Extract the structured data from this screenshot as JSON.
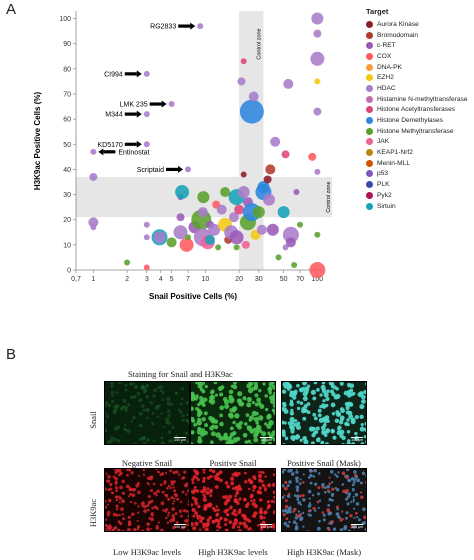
{
  "panel_a_letter": "A",
  "panel_b_letter": "B",
  "chart_data": {
    "type": "scatter",
    "title": "",
    "xlabel": "Snail Positive Cells (%)",
    "ylabel": "H3K9ac Positive Cells (%)",
    "x_scale": "log",
    "xlim": [
      0.7,
      110
    ],
    "ylim": [
      0,
      103
    ],
    "x_ticks": [
      0.7,
      1,
      2,
      3,
      4,
      5,
      7,
      10,
      20,
      30,
      50,
      70,
      100
    ],
    "x_tick_labels": [
      "0,7",
      "1",
      "2",
      "3",
      "4",
      "5",
      "7",
      "10",
      "20",
      "30",
      "50",
      "70",
      "100"
    ],
    "y_ticks": [
      0,
      10,
      20,
      30,
      40,
      50,
      60,
      70,
      80,
      90,
      100
    ],
    "grid": false,
    "legend_position": "right",
    "control_zone_label": "Control zone",
    "control_zone_x": [
      20,
      33
    ],
    "control_zone_y": [
      21,
      37
    ],
    "legend_title": "Target",
    "series": [
      {
        "name": "Aurora Kinase",
        "color": "#8c1e2b"
      },
      {
        "name": "Bromodomain",
        "color": "#b03a2e"
      },
      {
        "name": "c-RET",
        "color": "#9b59b6"
      },
      {
        "name": "COX",
        "color": "#ff5a5f"
      },
      {
        "name": "DNA-PK",
        "color": "#ff9a3c"
      },
      {
        "name": "EZH2",
        "color": "#f2c811"
      },
      {
        "name": "HDAC",
        "color": "#a87cc9"
      },
      {
        "name": "Histamine N-methyltransferase",
        "color": "#c06cb0"
      },
      {
        "name": "Histone Acetyltransferases",
        "color": "#e0457b"
      },
      {
        "name": "Histone Demethylases",
        "color": "#2e86de"
      },
      {
        "name": "Histone Methyltransferase",
        "color": "#5aa02c"
      },
      {
        "name": "JAK",
        "color": "#f06292"
      },
      {
        "name": "KEAP1-Nrf2",
        "color": "#b8860b"
      },
      {
        "name": "Menin-MLL",
        "color": "#d35400"
      },
      {
        "name": "p53",
        "color": "#7e57c2"
      },
      {
        "name": "PLK",
        "color": "#3949ab"
      },
      {
        "name": "Pyk2",
        "color": "#ad1457"
      },
      {
        "name": "Sirtuin",
        "color": "#17a2b8"
      }
    ],
    "labeled_points": [
      {
        "label": "RG2833",
        "x": 9,
        "y": 97
      },
      {
        "label": "CI994",
        "x": 3,
        "y": 78
      },
      {
        "label": "LMK 235",
        "x": 5,
        "y": 66
      },
      {
        "label": "M344",
        "x": 3,
        "y": 62
      },
      {
        "label": "KD5170",
        "x": 3,
        "y": 50
      },
      {
        "label": "Entinostat",
        "x": 1,
        "y": 47
      },
      {
        "label": "Scriptaid",
        "x": 7,
        "y": 40
      }
    ],
    "points": [
      {
        "x": 9,
        "y": 97,
        "s": 3,
        "c": 6
      },
      {
        "x": 3,
        "y": 78,
        "s": 3,
        "c": 6
      },
      {
        "x": 5,
        "y": 66,
        "s": 3,
        "c": 6
      },
      {
        "x": 3,
        "y": 62,
        "s": 3,
        "c": 6
      },
      {
        "x": 3,
        "y": 50,
        "s": 3,
        "c": 6
      },
      {
        "x": 1,
        "y": 47,
        "s": 3,
        "c": 6
      },
      {
        "x": 7,
        "y": 40,
        "s": 3,
        "c": 6
      },
      {
        "x": 1,
        "y": 37,
        "s": 4,
        "c": 6
      },
      {
        "x": 1,
        "y": 19,
        "s": 5,
        "c": 6
      },
      {
        "x": 1,
        "y": 17,
        "s": 3,
        "c": 6
      },
      {
        "x": 2,
        "y": 3,
        "s": 3,
        "c": 10
      },
      {
        "x": 3,
        "y": 18,
        "s": 3,
        "c": 6
      },
      {
        "x": 3,
        "y": 13,
        "s": 3,
        "c": 6
      },
      {
        "x": 3,
        "y": 1,
        "s": 3,
        "c": 3
      },
      {
        "x": 3.9,
        "y": 13,
        "s": 8,
        "c": 17
      },
      {
        "x": 3.9,
        "y": 13,
        "s": 6,
        "c": 6
      },
      {
        "x": 5,
        "y": 11,
        "s": 5,
        "c": 10
      },
      {
        "x": 6,
        "y": 15,
        "s": 7,
        "c": 6
      },
      {
        "x": 6,
        "y": 21,
        "s": 4,
        "c": 2
      },
      {
        "x": 6,
        "y": 29,
        "s": 3,
        "c": 2
      },
      {
        "x": 6.2,
        "y": 31,
        "s": 7,
        "c": 17
      },
      {
        "x": 6.8,
        "y": 10,
        "s": 7,
        "c": 3
      },
      {
        "x": 7,
        "y": 13,
        "s": 3,
        "c": 10
      },
      {
        "x": 8,
        "y": 17,
        "s": 6,
        "c": 2
      },
      {
        "x": 9.2,
        "y": 20,
        "s": 10,
        "c": 10
      },
      {
        "x": 9.5,
        "y": 13,
        "s": 9,
        "c": 6
      },
      {
        "x": 9.5,
        "y": 23,
        "s": 5,
        "c": 6
      },
      {
        "x": 9.6,
        "y": 29,
        "s": 6,
        "c": 10
      },
      {
        "x": 10.5,
        "y": 11,
        "s": 7,
        "c": 11
      },
      {
        "x": 11,
        "y": 12,
        "s": 5,
        "c": 17
      },
      {
        "x": 11,
        "y": 18,
        "s": 4,
        "c": 2
      },
      {
        "x": 12,
        "y": 16,
        "s": 6,
        "c": 6
      },
      {
        "x": 12.5,
        "y": 26,
        "s": 4,
        "c": 3
      },
      {
        "x": 13,
        "y": 9,
        "s": 3,
        "c": 10
      },
      {
        "x": 14,
        "y": 24,
        "s": 5,
        "c": 6
      },
      {
        "x": 15,
        "y": 18,
        "s": 7,
        "c": 5
      },
      {
        "x": 15,
        "y": 31,
        "s": 5,
        "c": 10
      },
      {
        "x": 16,
        "y": 12,
        "s": 4,
        "c": 1
      },
      {
        "x": 17,
        "y": 15,
        "s": 7,
        "c": 6
      },
      {
        "x": 18,
        "y": 21,
        "s": 5,
        "c": 6
      },
      {
        "x": 19,
        "y": 13,
        "s": 7,
        "c": 2
      },
      {
        "x": 19,
        "y": 9,
        "s": 3,
        "c": 10
      },
      {
        "x": 19,
        "y": 29,
        "s": 8,
        "c": 17
      },
      {
        "x": 20,
        "y": 24,
        "s": 5,
        "c": 8
      },
      {
        "x": 21,
        "y": 75,
        "s": 4,
        "c": 6
      },
      {
        "x": 22,
        "y": 83,
        "s": 3,
        "c": 8
      },
      {
        "x": 22,
        "y": 38,
        "s": 3,
        "c": 0
      },
      {
        "x": 22,
        "y": 31,
        "s": 6,
        "c": 6
      },
      {
        "x": 23,
        "y": 10,
        "s": 4,
        "c": 11
      },
      {
        "x": 24,
        "y": 19,
        "s": 8,
        "c": 10
      },
      {
        "x": 24,
        "y": 27,
        "s": 5,
        "c": 2
      },
      {
        "x": 26,
        "y": 23,
        "s": 9,
        "c": 9
      },
      {
        "x": 26,
        "y": 63,
        "s": 12,
        "c": 9
      },
      {
        "x": 27,
        "y": 69,
        "s": 5,
        "c": 6
      },
      {
        "x": 28,
        "y": 14,
        "s": 5,
        "c": 5
      },
      {
        "x": 30,
        "y": 23,
        "s": 6,
        "c": 10
      },
      {
        "x": 32,
        "y": 16,
        "s": 5,
        "c": 6
      },
      {
        "x": 33,
        "y": 31,
        "s": 8,
        "c": 9
      },
      {
        "x": 33,
        "y": 33,
        "s": 6,
        "c": 9
      },
      {
        "x": 36,
        "y": 36,
        "s": 4,
        "c": 0
      },
      {
        "x": 37,
        "y": 28,
        "s": 6,
        "c": 6
      },
      {
        "x": 38,
        "y": 40,
        "s": 5,
        "c": 1
      },
      {
        "x": 40,
        "y": 16,
        "s": 6,
        "c": 2
      },
      {
        "x": 42,
        "y": 51,
        "s": 5,
        "c": 6
      },
      {
        "x": 45,
        "y": 5,
        "s": 3,
        "c": 10
      },
      {
        "x": 50,
        "y": 23,
        "s": 6,
        "c": 17
      },
      {
        "x": 52,
        "y": 9,
        "s": 3,
        "c": 6
      },
      {
        "x": 52,
        "y": 46,
        "s": 4,
        "c": 8
      },
      {
        "x": 55,
        "y": 74,
        "s": 5,
        "c": 6
      },
      {
        "x": 58,
        "y": 14,
        "s": 8,
        "c": 6
      },
      {
        "x": 58,
        "y": 11,
        "s": 5,
        "c": 2
      },
      {
        "x": 62,
        "y": 2,
        "s": 3,
        "c": 10
      },
      {
        "x": 65,
        "y": 31,
        "s": 3,
        "c": 2
      },
      {
        "x": 70,
        "y": 18,
        "s": 3,
        "c": 10
      },
      {
        "x": 90,
        "y": 45,
        "s": 4,
        "c": 3
      },
      {
        "x": 100,
        "y": 100,
        "s": 6,
        "c": 6
      },
      {
        "x": 100,
        "y": 94,
        "s": 4,
        "c": 6
      },
      {
        "x": 100,
        "y": 84,
        "s": 7,
        "c": 6
      },
      {
        "x": 100,
        "y": 75,
        "s": 3,
        "c": 5
      },
      {
        "x": 100,
        "y": 63,
        "s": 4,
        "c": 6
      },
      {
        "x": 100,
        "y": 39,
        "s": 3,
        "c": 6
      },
      {
        "x": 100,
        "y": 14,
        "s": 3,
        "c": 10
      },
      {
        "x": 100,
        "y": 0,
        "s": 8,
        "c": 3
      }
    ]
  },
  "panel_b": {
    "title": "Staining for Snail and H3K9ac",
    "row1_label": "Snail",
    "row2_label": "H3K9ac",
    "scale_text": "100 µm",
    "row1_captions": [
      "Negative Snail",
      "Positive Snail",
      "Positive Snail (Mask)"
    ],
    "row2_captions": [
      "Low H3K9ac levels",
      "High H3K9ac levels",
      "High H3K9ac (Mask)"
    ]
  }
}
